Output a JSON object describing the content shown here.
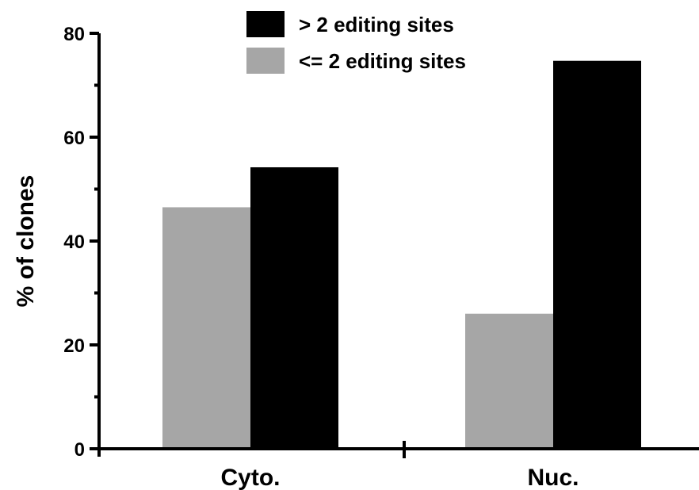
{
  "chart_data": {
    "type": "bar",
    "ylabel": "% of clones",
    "ylim": [
      0,
      80
    ],
    "y_ticks": [
      "0",
      "20",
      "40",
      "60",
      "80"
    ],
    "grid": false,
    "legend_position": "top",
    "categories": [
      "Cyto.",
      "Nuc."
    ],
    "series": [
      {
        "name": "<= 2 editing sites",
        "color": "#a6a6a6",
        "values": [
          46.5,
          26.0
        ]
      },
      {
        "name": "> 2 editing sites",
        "color": "#000000",
        "values": [
          54.2,
          74.7
        ]
      }
    ]
  }
}
